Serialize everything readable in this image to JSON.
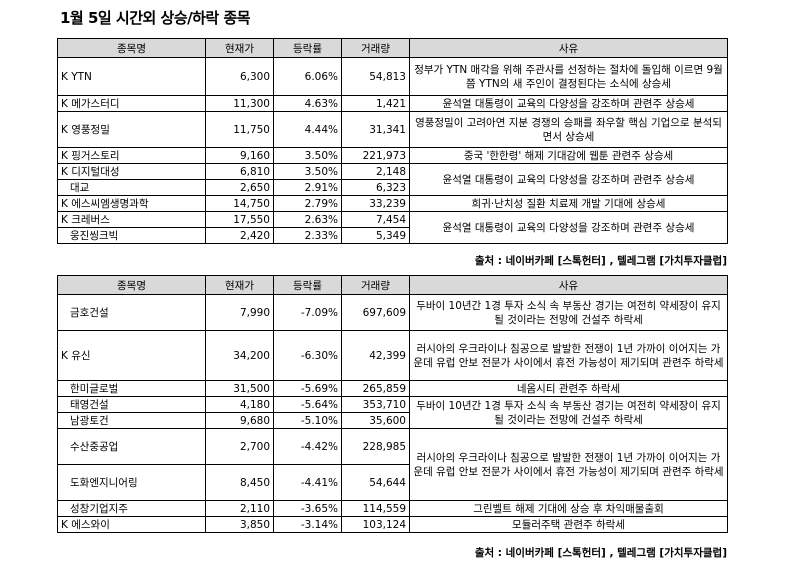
{
  "title": "1월 5일  시간외 상승/하락 종목",
  "headers": [
    "종목명",
    "현재가",
    "등락률",
    "거래량",
    "사유"
  ],
  "rise": {
    "rows": [
      {
        "name": "K YTN",
        "price": "6,300",
        "rate": "6.06%",
        "volume": "54,813"
      },
      {
        "name": "K 메가스터디",
        "price": "11,300",
        "rate": "4.63%",
        "volume": "1,421"
      },
      {
        "name": "K 영풍정밀",
        "price": "11,750",
        "rate": "4.44%",
        "volume": "31,341"
      },
      {
        "name": "K 핑거스토리",
        "price": "9,160",
        "rate": "3.50%",
        "volume": "221,973"
      },
      {
        "name": "K 디지털대성",
        "price": "6,810",
        "rate": "3.50%",
        "volume": "2,148"
      },
      {
        "name": "대교",
        "price": "2,650",
        "rate": "2.91%",
        "volume": "6,323"
      },
      {
        "name": "K 에스씨엠생명과학",
        "price": "14,750",
        "rate": "2.79%",
        "volume": "33,239"
      },
      {
        "name": "K 크레버스",
        "price": "17,550",
        "rate": "2.63%",
        "volume": "7,454"
      },
      {
        "name": "웅진씽크빅",
        "price": "2,420",
        "rate": "2.33%",
        "volume": "5,349"
      }
    ],
    "reasons": [
      "정부가 YTN 매각을 위해 주관사를 선정하는 절차에 돌입해 이르면 9월쯤 YTN의 새 주인이 결정된다는 소식에 상승세",
      "윤석열 대통령이 교육의 다양성을 강조하며 관련주 상승세",
      "영풍정밀이 고려아연 지분 경쟁의 승패를 좌우할 핵심 기업으로 분석되면서 상승세",
      "중국 '한한령' 해제 기대감에 웹툰 관련주 상승세",
      "윤석열 대통령이 교육의 다양성을 강조하며 관련주 상승세",
      "희귀·난치성 질환 치료제 개발 기대에 상승세",
      "윤석열 대통령이 교육의 다양성을 강조하며 관련주 상승세"
    ],
    "source": "출처 : 네이버카페 [스톡헌터] , 텔레그램 [가치투자클럽]"
  },
  "fall": {
    "rows": [
      {
        "name": "금호건설",
        "price": "7,990",
        "rate": "-7.09%",
        "volume": "697,609"
      },
      {
        "name": "K 유신",
        "price": "34,200",
        "rate": "-6.30%",
        "volume": "42,399"
      },
      {
        "name": "한미글로벌",
        "price": "31,500",
        "rate": "-5.69%",
        "volume": "265,859"
      },
      {
        "name": "태영건설",
        "price": "4,180",
        "rate": "-5.64%",
        "volume": "353,710"
      },
      {
        "name": "남광토건",
        "price": "9,680",
        "rate": "-5.10%",
        "volume": "35,600"
      },
      {
        "name": "수산중공업",
        "price": "2,700",
        "rate": "-4.42%",
        "volume": "228,985"
      },
      {
        "name": "도화엔지니어링",
        "price": "8,450",
        "rate": "-4.41%",
        "volume": "54,644"
      },
      {
        "name": "성창기업지주",
        "price": "2,110",
        "rate": "-3.65%",
        "volume": "114,559"
      },
      {
        "name": "K 에스와이",
        "price": "3,850",
        "rate": "-3.14%",
        "volume": "103,124"
      }
    ],
    "reasons": [
      "두바이 10년간 1경 투자 소식 속 부동산 경기는 여전히 약세장이 유지될 것이라는 전망에 건설주 하락세",
      "러시아의 우크라이나 침공으로 발발한 전쟁이 1년 가까이 이어지는 가운데 유럽 안보 전문가 사이에서 휴전 가능성이 제기되며 관련주 하락세",
      "네옴시티 관련주 하락세",
      "두바이 10년간 1경 투자 소식 속 부동산 경기는 여전히 약세장이 유지될 것이라는 전망에 건설주 하락세",
      "러시아의 우크라이나 침공으로 발발한 전쟁이 1년 가까이 이어지는 가운데 유럽 안보 전문가 사이에서 휴전 가능성이 제기되며 관련주 하락세",
      "그린벨트 해제 기대에 상승 후 차익매물출회",
      "모듈러주택 관련주 하락세"
    ],
    "source": "출처 : 네이버카페 [스톡헌터] , 텔레그램 [가치투자클럽]"
  }
}
